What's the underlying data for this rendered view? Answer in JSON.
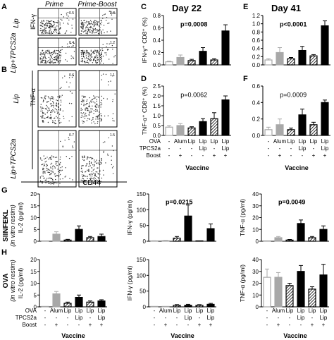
{
  "colors": {
    "ctrl": "#ffffff",
    "alum": "#a8a8a8",
    "lip": "#000000",
    "ptext": "#000000"
  },
  "flow": {
    "col_titles": [
      "Prime",
      "Prime-Boost"
    ],
    "row_labels": [
      "Lip",
      "Lip+TPCS2a"
    ],
    "gate_values": {
      "A": [
        [
          "0.5",
          "0.8"
        ],
        [
          "0.4",
          "1.2"
        ]
      ],
      "B": [
        [
          "0.6",
          "1.1"
        ],
        [
          "0.7",
          "1.5"
        ]
      ]
    },
    "a_axis": "IFN-γ",
    "b_axis": "TNF-α",
    "xaxis": "CD44"
  },
  "panel_letters": [
    "A",
    "B",
    "C",
    "D",
    "E",
    "F",
    "G",
    "H"
  ],
  "days": [
    "Day 22",
    "Day 41"
  ],
  "axis_labels": {
    "ifn": "IFN-γ⁺ CD8⁺ (%)",
    "tnf": "TNF-α⁺ CD8⁺ (%)",
    "il2": "IL-2 (pg/ml)",
    "ifng": "IFN-γ (pg/ml)",
    "tnfa": "TNF-α (pg/ml)",
    "rowG": "SIINFEKL",
    "rowH": "OVA",
    "sub": "(in vitro restim)"
  },
  "table": {
    "rows": [
      {
        "label": "OVA",
        "cells": [
          "-",
          "Alum",
          "Lip",
          "Lip",
          "Lip",
          "Lip"
        ]
      },
      {
        "label": "TPCS2a",
        "cells": [
          "-",
          "-",
          "-",
          "Lip",
          "-",
          "Lip"
        ]
      },
      {
        "label": "Boost",
        "cells": [
          "-",
          "+",
          "-",
          "-",
          "+",
          "+"
        ]
      }
    ],
    "xlabel": "Vaccine"
  },
  "chart_data": [
    {
      "id": "C",
      "type": "bar",
      "categories": [
        "-/-",
        "Alum/+",
        "Lip/-",
        "Lip+TPCS2a/-",
        "Lip/+",
        "Lip+TPCS2a/+"
      ],
      "values": [
        0.05,
        0.12,
        0.07,
        0.22,
        0.08,
        0.55
      ],
      "errors": [
        0.01,
        0.04,
        0.02,
        0.06,
        0.02,
        0.1
      ],
      "ylim": [
        0,
        0.8
      ],
      "ticks": [
        "0.0",
        "0.2",
        "0.4",
        "0.6",
        "0.8"
      ],
      "ptext": "p=0.0008",
      "ylabel": "IFN-γ⁺ CD8⁺ (%)"
    },
    {
      "id": "D",
      "type": "bar",
      "categories": [
        "-/-",
        "Alum/+",
        "Lip/-",
        "Lip+TPCS2a/-",
        "Lip/+",
        "Lip+TPCS2a/+"
      ],
      "values": [
        0.42,
        0.5,
        0.38,
        0.7,
        0.85,
        1.8
      ],
      "errors": [
        0.08,
        0.1,
        0.06,
        0.15,
        0.3,
        0.2
      ],
      "ylim": [
        0,
        2.5
      ],
      "ticks": [
        "0.0",
        "0.5",
        "1.0",
        "1.5",
        "2.0",
        "2.5"
      ],
      "ptext": "p=0.0062",
      "ylabel": "TNF-α⁺ CD8⁺ (%)"
    },
    {
      "id": "E",
      "type": "bar",
      "categories": [
        "-/-",
        "Alum/+",
        "Lip/-",
        "Lip+TPCS2a/-",
        "Lip/+",
        "Lip+TPCS2a/+"
      ],
      "values": [
        0.12,
        0.3,
        0.15,
        0.35,
        0.22,
        0.95
      ],
      "errors": [
        0.03,
        0.12,
        0.03,
        0.1,
        0.03,
        0.12
      ],
      "ylim": [
        0,
        1.2
      ],
      "ticks": [
        "0.0",
        "0.2",
        "0.4",
        "0.6",
        "0.8",
        "1.0",
        "1.2"
      ],
      "ptext": "p<0.0001",
      "ylabel": ""
    },
    {
      "id": "F",
      "type": "bar",
      "categories": [
        "-/-",
        "Alum/+",
        "Lip/-",
        "Lip+TPCS2a/-",
        "Lip/+",
        "Lip+TPCS2a/+"
      ],
      "values": [
        0.07,
        0.13,
        0.07,
        0.25,
        0.13,
        0.4
      ],
      "errors": [
        0.03,
        0.07,
        0.02,
        0.07,
        0.03,
        0.03
      ],
      "ylim": [
        0,
        0.6
      ],
      "ticks": [
        "0.0",
        "0.2",
        "0.4",
        "0.6"
      ],
      "ptext": "p=0.0009",
      "ylabel": ""
    },
    {
      "id": "G1",
      "type": "bar",
      "categories": [
        "-/-",
        "Alum/+",
        "Lip/-",
        "Lip+TPCS2a/-",
        "Lip/+",
        "Lip+TPCS2a/+"
      ],
      "values": [
        0,
        3,
        0.5,
        5,
        1.5,
        2
      ],
      "errors": [
        0,
        1,
        0.3,
        1.5,
        0.5,
        1
      ],
      "ylim": [
        0,
        20
      ],
      "ticks": [
        "0",
        "5",
        "10",
        "15",
        "20"
      ],
      "ptext": "",
      "ylabel": "IL-2 (pg/ml)"
    },
    {
      "id": "G2",
      "type": "bar",
      "categories": [
        "-/-",
        "Alum/+",
        "Lip/-",
        "Lip+TPCS2a/-",
        "Lip/+",
        "Lip+TPCS2a/+"
      ],
      "values": [
        1,
        2,
        10,
        80,
        0,
        40
      ],
      "errors": [
        0.5,
        1,
        5,
        35,
        0,
        15
      ],
      "ylim": [
        0,
        150
      ],
      "ticks": [
        "0",
        "50",
        "100",
        "150"
      ],
      "ptext": "p=0.0215",
      "ylabel": "IFN-γ (pg/ml)"
    },
    {
      "id": "G3",
      "type": "bar",
      "categories": [
        "-/-",
        "Alum/+",
        "Lip/-",
        "Lip+TPCS2a/-",
        "Lip/+",
        "Lip+TPCS2a/+"
      ],
      "values": [
        0,
        3,
        1,
        15,
        3,
        10
      ],
      "errors": [
        0,
        1,
        0.5,
        3,
        1,
        3
      ],
      "ylim": [
        0,
        40
      ],
      "ticks": [
        "0",
        "10",
        "20",
        "30",
        "40"
      ],
      "ptext": "p=0.0049",
      "ylabel": "TNF-α (pg/ml)"
    },
    {
      "id": "H1",
      "type": "bar",
      "categories": [
        "-/-",
        "Alum/+",
        "Lip/-",
        "Lip+TPCS2a/-",
        "Lip/+",
        "Lip+TPCS2a/+"
      ],
      "values": [
        0,
        5.5,
        1.5,
        4,
        2,
        2.5
      ],
      "errors": [
        0,
        1,
        0.5,
        1,
        0.5,
        0.5
      ],
      "ylim": [
        0,
        20
      ],
      "ticks": [
        "0",
        "5",
        "10",
        "15",
        "20"
      ],
      "ptext": "",
      "ylabel": "IL-2 (pg/ml)"
    },
    {
      "id": "H2",
      "type": "bar",
      "categories": [
        "-/-",
        "Alum/+",
        "Lip/-",
        "Lip+TPCS2a/-",
        "Lip/+",
        "Lip+TPCS2a/+"
      ],
      "values": [
        0,
        0,
        5,
        5,
        5,
        8
      ],
      "errors": [
        0,
        0,
        2,
        3,
        2,
        3
      ],
      "ylim": [
        0,
        150
      ],
      "ticks": [
        "0",
        "50",
        "100",
        "150"
      ],
      "ptext": "",
      "ylabel": "IFN-γ (pg/ml)"
    },
    {
      "id": "H3",
      "type": "bar",
      "categories": [
        "-/-",
        "Alum/+",
        "Lip/-",
        "Lip+TPCS2a/-",
        "Lip/+",
        "Lip+TPCS2a/+"
      ],
      "values": [
        25,
        25,
        18,
        30,
        15,
        27
      ],
      "errors": [
        7,
        4,
        2,
        5,
        2,
        9
      ],
      "ylim": [
        0,
        40
      ],
      "ticks": [
        "0",
        "10",
        "20",
        "30",
        "40"
      ],
      "ptext": "",
      "ylabel": "TNF-α (pg/ml)"
    }
  ]
}
